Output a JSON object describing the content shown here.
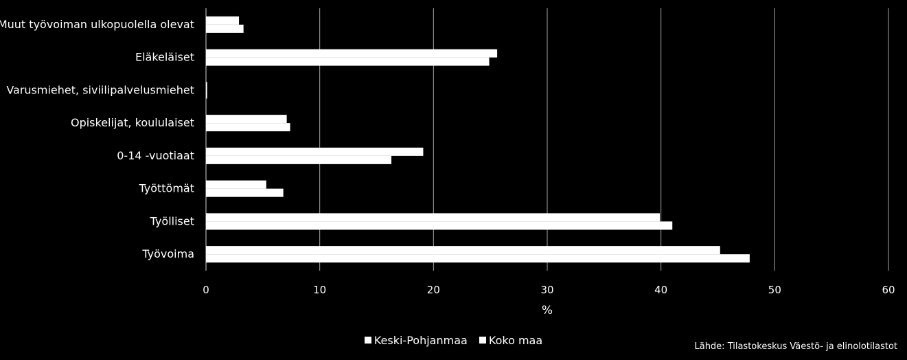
{
  "chart_data": {
    "type": "bar",
    "orientation": "horizontal",
    "categories": [
      "Työvoima",
      "Työlliset",
      "Työttömät",
      "0-14 -vuotiaat",
      "Opiskelijat, koululaiset",
      "Varusmiehet, siviilipalvelusmiehet",
      "Eläkeläiset",
      "Muut työvoiman ulkopuolella olevat"
    ],
    "series": [
      {
        "name": "Keski-Pohjanmaa",
        "values": [
          45.2,
          39.9,
          5.3,
          19.1,
          7.1,
          0.1,
          25.6,
          2.9
        ]
      },
      {
        "name": "Koko maa",
        "values": [
          47.8,
          41.0,
          6.8,
          16.3,
          7.4,
          0.1,
          24.9,
          3.3
        ]
      }
    ],
    "xlabel": "%",
    "ylabel": "",
    "xlim": [
      0,
      60
    ],
    "xticks": [
      "0",
      "10",
      "20",
      "30",
      "40",
      "50",
      "60"
    ],
    "grid": true,
    "legend_position": "bottom",
    "bar_color": "#ffffff",
    "background_color": "#000000",
    "gridline_color": "#a6a6a6"
  },
  "legend": {
    "items": [
      "Keski-Pohjanmaa",
      "Koko maa"
    ]
  },
  "source": "Lähde: Tilastokeskus Väestö- ja elinolotilastot"
}
